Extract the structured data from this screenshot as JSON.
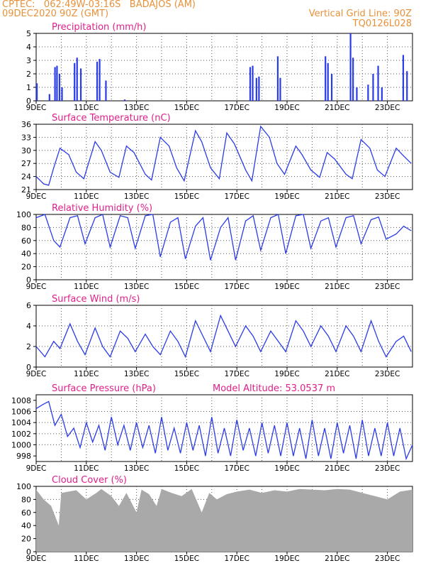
{
  "header": {
    "station": "CPTEC:   062:49W-03:16S   BADAJOS (AM)",
    "date": "09DEC2020 90Z (GMT)",
    "grid_note": "Vertical Grid Line: 90Z",
    "code": "TQ0126L028"
  },
  "colors": {
    "header": "#e8913a",
    "title": "#e0208a",
    "series": "#2a3be8",
    "cloud": "#a9a9a9",
    "grid": "#555555"
  },
  "x_ticks": [
    "9DEC",
    "11DEC",
    "13DEC",
    "15DEC",
    "17DEC",
    "19DEC",
    "21DEC",
    "23DEC"
  ],
  "chart_data": [
    {
      "id": "precip",
      "type": "bar",
      "title": "Precipitation (mm/h)",
      "ylim": [
        0,
        5
      ],
      "yticks": [
        "0",
        "1",
        "2",
        "3",
        "4",
        "5"
      ],
      "x_days": [
        0.0,
        0.5,
        0.72,
        0.8,
        0.9,
        1.0,
        1.5,
        1.6,
        1.75,
        2.4,
        2.5,
        2.75,
        3.5,
        8.5,
        8.6,
        8.75,
        8.85,
        9.6,
        9.7,
        11.5,
        11.6,
        11.75,
        12.5,
        12.6,
        12.75,
        13.2,
        13.4,
        13.6,
        13.75,
        14.6,
        14.75
      ],
      "values": [
        1.3,
        0.5,
        2.5,
        2.6,
        2.0,
        1.0,
        2.8,
        3.2,
        2.4,
        2.9,
        3.1,
        1.5,
        0.1,
        2.5,
        2.6,
        1.7,
        1.8,
        3.3,
        1.7,
        3.3,
        2.8,
        2.0,
        5.0,
        3.2,
        1.0,
        1.2,
        2.0,
        2.6,
        1.0,
        3.4,
        2.2
      ]
    },
    {
      "id": "temp",
      "type": "line",
      "title": "Surface Temperature (nC)",
      "ylim": [
        21,
        36
      ],
      "yticks": [
        "21",
        "24",
        "27",
        "30",
        "33",
        "36"
      ],
      "x_days": [
        0.0,
        0.3,
        0.5,
        0.7,
        0.95,
        1.3,
        1.6,
        1.9,
        2.35,
        2.6,
        2.95,
        3.3,
        3.6,
        3.9,
        4.35,
        4.6,
        4.95,
        5.3,
        5.6,
        5.9,
        6.35,
        6.6,
        6.95,
        7.3,
        7.6,
        7.9,
        8.35,
        8.6,
        8.95,
        9.3,
        9.6,
        9.9,
        10.35,
        10.6,
        10.95,
        11.3,
        11.6,
        11.9,
        12.35,
        12.6,
        12.95,
        13.3,
        13.6,
        13.9,
        14.35,
        14.6,
        14.95
      ],
      "values": [
        24.0,
        22.3,
        22.0,
        26.0,
        30.5,
        29.0,
        25.0,
        23.5,
        32.0,
        30.0,
        25.0,
        23.8,
        31.0,
        29.5,
        24.5,
        23.2,
        33.0,
        31.0,
        26.0,
        23.0,
        34.5,
        32.0,
        26.0,
        23.5,
        34.0,
        31.5,
        25.5,
        23.0,
        35.5,
        33.0,
        27.0,
        24.5,
        31.0,
        29.0,
        25.5,
        23.8,
        29.5,
        28.0,
        24.5,
        23.5,
        32.5,
        30.5,
        25.5,
        24.0,
        30.5,
        29.0,
        27.0
      ]
    },
    {
      "id": "rh",
      "type": "line",
      "title": "Relative Humidity (%)",
      "ylim": [
        0,
        100
      ],
      "yticks": [
        "0",
        "20",
        "40",
        "60",
        "80",
        "100"
      ],
      "x_days": [
        0.0,
        0.35,
        0.7,
        0.95,
        1.35,
        1.65,
        1.95,
        2.35,
        2.65,
        2.95,
        3.35,
        3.65,
        3.95,
        4.35,
        4.65,
        4.95,
        5.35,
        5.65,
        5.95,
        6.35,
        6.65,
        6.95,
        7.35,
        7.65,
        7.95,
        8.35,
        8.65,
        8.95,
        9.35,
        9.65,
        9.95,
        10.35,
        10.65,
        10.95,
        11.35,
        11.65,
        11.95,
        12.35,
        12.65,
        12.95,
        13.35,
        13.65,
        13.95,
        14.35,
        14.65,
        14.95
      ],
      "values": [
        95,
        100,
        60,
        50,
        95,
        98,
        55,
        95,
        100,
        50,
        98,
        95,
        48,
        98,
        100,
        35,
        88,
        95,
        32,
        82,
        95,
        30,
        80,
        95,
        30,
        90,
        98,
        45,
        95,
        100,
        40,
        98,
        100,
        48,
        90,
        95,
        50,
        95,
        98,
        55,
        92,
        96,
        62,
        70,
        82,
        75
      ]
    },
    {
      "id": "wind",
      "type": "line",
      "title": "Surface Wind (m/s)",
      "ylim": [
        0,
        6
      ],
      "yticks": [
        "0",
        "2",
        "4",
        "6"
      ],
      "x_days": [
        0.0,
        0.35,
        0.7,
        0.95,
        1.35,
        1.65,
        1.95,
        2.35,
        2.65,
        2.95,
        3.35,
        3.65,
        3.95,
        4.35,
        4.65,
        4.95,
        5.35,
        5.65,
        5.95,
        6.35,
        6.65,
        6.95,
        7.35,
        7.65,
        7.95,
        8.35,
        8.65,
        8.95,
        9.35,
        9.65,
        9.95,
        10.35,
        10.65,
        10.95,
        11.35,
        11.65,
        11.95,
        12.35,
        12.65,
        12.95,
        13.35,
        13.65,
        13.95,
        14.35,
        14.65,
        14.95
      ],
      "values": [
        2.0,
        1.0,
        2.5,
        1.8,
        4.2,
        2.5,
        1.2,
        3.8,
        2.0,
        1.0,
        3.5,
        2.8,
        1.5,
        3.2,
        2.0,
        1.2,
        3.5,
        2.5,
        1.0,
        4.5,
        3.0,
        1.5,
        5.0,
        3.5,
        2.0,
        4.0,
        3.0,
        1.5,
        3.5,
        2.5,
        1.5,
        4.5,
        3.5,
        2.0,
        4.0,
        3.0,
        1.5,
        4.0,
        3.0,
        1.5,
        4.5,
        2.5,
        1.0,
        2.5,
        3.0,
        1.5
      ]
    },
    {
      "id": "pres",
      "type": "line",
      "title": "Surface Pressure (hPa)",
      "note": "Model Altitude: 53.0537 m",
      "ylim": [
        997,
        1009
      ],
      "yticks": [
        "998",
        "1000",
        "1002",
        "1004",
        "1006",
        "1008"
      ],
      "x_days": [
        0.0,
        0.25,
        0.5,
        0.75,
        1.0,
        1.25,
        1.5,
        1.75,
        2.0,
        2.25,
        2.5,
        2.75,
        3.0,
        3.25,
        3.5,
        3.75,
        4.0,
        4.25,
        4.5,
        4.75,
        5.0,
        5.25,
        5.5,
        5.75,
        6.0,
        6.25,
        6.5,
        6.75,
        7.0,
        7.25,
        7.5,
        7.75,
        8.0,
        8.25,
        8.5,
        8.75,
        9.0,
        9.25,
        9.5,
        9.75,
        10.0,
        10.25,
        10.5,
        10.75,
        11.0,
        11.25,
        11.5,
        11.75,
        12.0,
        12.25,
        12.5,
        12.75,
        13.0,
        13.25,
        13.5,
        13.75,
        14.0,
        14.25,
        14.5,
        14.75,
        15.0
      ],
      "values": [
        1006.5,
        1007.2,
        1007.8,
        1003.5,
        1005.5,
        1001.5,
        1003.0,
        999.5,
        1004.0,
        1000.5,
        1003.5,
        999.0,
        1005.0,
        1000.0,
        1003.5,
        999.0,
        1004.0,
        999.5,
        1003.5,
        998.5,
        1005.0,
        999.0,
        1003.0,
        998.5,
        1004.0,
        999.0,
        1003.5,
        998.0,
        1005.0,
        998.5,
        1003.0,
        998.0,
        1004.5,
        999.0,
        1003.0,
        998.0,
        1004.0,
        998.5,
        1003.5,
        998.0,
        1004.0,
        998.0,
        1003.0,
        997.5,
        1004.5,
        998.0,
        1003.0,
        997.5,
        1004.0,
        998.5,
        1003.5,
        997.5,
        1004.5,
        998.0,
        1003.0,
        998.0,
        1004.0,
        998.0,
        1003.0,
        997.5,
        1000.0
      ]
    },
    {
      "id": "cloud",
      "type": "area",
      "title": "Cloud Cover (%)",
      "ylim": [
        0,
        100
      ],
      "yticks": [
        "0",
        "20",
        "40",
        "60",
        "80",
        "100"
      ],
      "x_days": [
        0.0,
        0.3,
        0.6,
        0.9,
        1.0,
        1.3,
        1.6,
        2.0,
        2.4,
        2.6,
        3.0,
        3.3,
        3.6,
        4.0,
        4.2,
        4.5,
        4.8,
        5.0,
        5.4,
        5.8,
        6.2,
        6.6,
        6.9,
        7.2,
        7.6,
        8.0,
        8.5,
        9.0,
        9.5,
        10.0,
        10.5,
        11.0,
        11.5,
        12.0,
        12.5,
        13.0,
        13.5,
        14.0,
        14.5,
        15.0
      ],
      "values": [
        95,
        80,
        70,
        40,
        90,
        92,
        94,
        80,
        90,
        96,
        85,
        70,
        90,
        60,
        95,
        88,
        70,
        96,
        90,
        85,
        96,
        60,
        90,
        80,
        88,
        92,
        95,
        90,
        94,
        92,
        96,
        95,
        94,
        96,
        95,
        90,
        85,
        80,
        92,
        95
      ]
    }
  ]
}
